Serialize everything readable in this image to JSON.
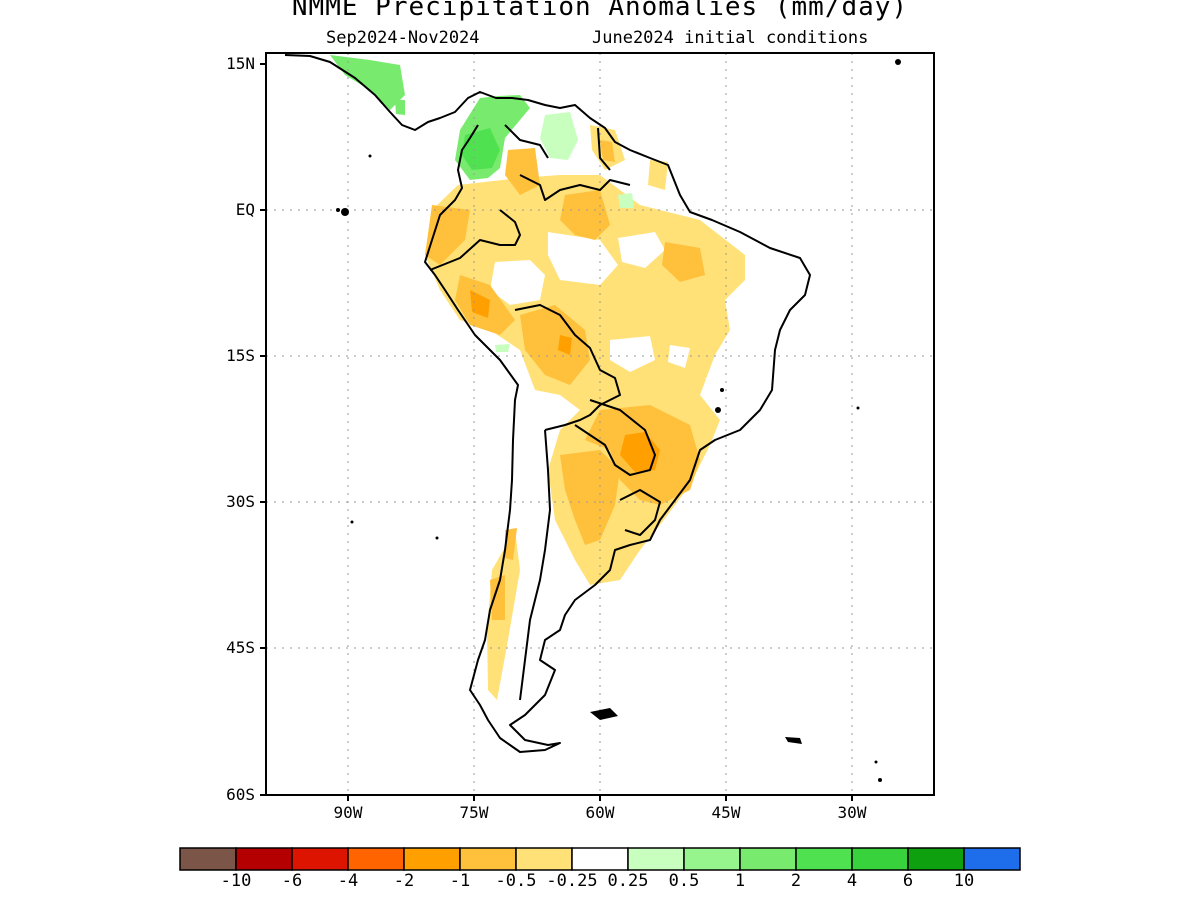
{
  "title": "NMME Precipitation Anomalies (mm/day)",
  "subtitle_left": "Sep2024-Nov2024",
  "subtitle_right": "June2024 initial conditions",
  "y_axis_labels": [
    "15N",
    "EQ",
    "15S",
    "30S",
    "45S",
    "60S"
  ],
  "x_axis_labels": [
    "90W",
    "75W",
    "60W",
    "45W",
    "30W"
  ],
  "colorbar": {
    "colors": [
      "#7a5548",
      "#b40000",
      "#dc1400",
      "#ff6400",
      "#ffa000",
      "#ffc03c",
      "#ffe178",
      "#ffffff",
      "#c8ffbe",
      "#96f58c",
      "#78eb6e",
      "#50e150",
      "#37d23c",
      "#0fa00f",
      "#1e6eeb"
    ],
    "labels": [
      "-10",
      "-6",
      "-4",
      "-2",
      "-1",
      "-0.5",
      "-0.25",
      "0.25",
      "0.5",
      "1",
      "2",
      "4",
      "6",
      "10"
    ]
  },
  "colors": {
    "light_orange": "#ffe178",
    "orange": "#ffc03c",
    "dark_orange": "#ffa000",
    "light_green": "#c8ffbe",
    "green": "#78eb6e",
    "mid_green": "#50e150"
  }
}
